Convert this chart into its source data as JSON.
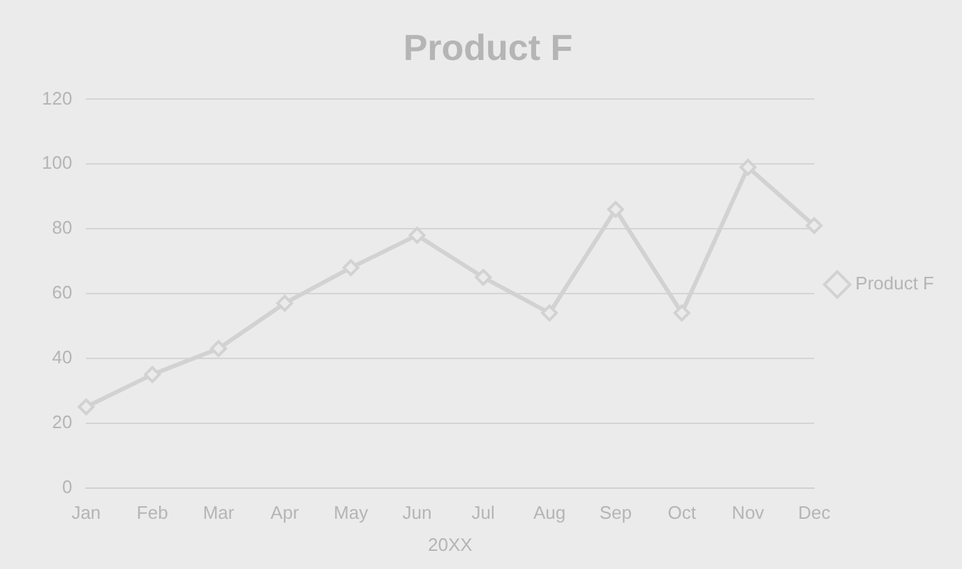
{
  "chart_data": {
    "type": "line",
    "title": "Product F",
    "xlabel": "20XX",
    "categories": [
      "Jan",
      "Feb",
      "Mar",
      "Apr",
      "May",
      "Jun",
      "Jul",
      "Aug",
      "Sep",
      "Oct",
      "Nov",
      "Dec"
    ],
    "series": [
      {
        "name": "Product F",
        "color": "#d2d2d2",
        "values": [
          25,
          35,
          43,
          57,
          68,
          78,
          65,
          54,
          86,
          54,
          99,
          81
        ]
      }
    ],
    "ylim": [
      0,
      120
    ],
    "yticks": [
      0,
      20,
      40,
      60,
      80,
      100,
      120
    ],
    "grid": "y",
    "legend": "right",
    "marker": "diamond",
    "line_style": "solid"
  }
}
